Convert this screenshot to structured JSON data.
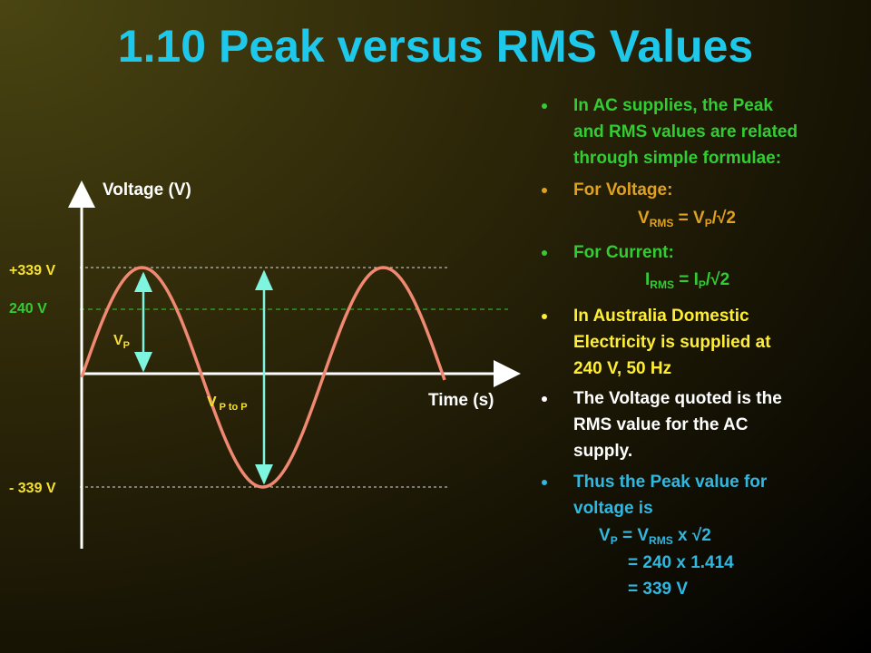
{
  "title": "1.10 Peak versus RMS Values",
  "diagram": {
    "y_axis_label": "Voltage (V)",
    "x_axis_label": "Time (s)",
    "levels": [
      "+339 V",
      "240 V",
      "- 339 V"
    ],
    "peak_label": [
      "V",
      "P"
    ],
    "peak_to_peak_label": [
      "V",
      "P to P"
    ]
  },
  "bullets": [
    {
      "lines": [
        "In AC supplies, the Peak",
        "and RMS values are related",
        "through simple formulae:"
      ]
    },
    {
      "lines": [
        "For Voltage:"
      ],
      "formula": [
        "V",
        "RMS",
        " = V",
        "P",
        "/√2"
      ]
    },
    {
      "lines": [
        "For Current:"
      ],
      "formula": [
        "I",
        "RMS",
        " = I",
        "P",
        "/√2"
      ]
    },
    {
      "lines": [
        "In Australia Domestic",
        "Electricity is supplied at",
        "240 V, 50 Hz"
      ]
    },
    {
      "lines": [
        "The Voltage quoted is the",
        "RMS value for the AC",
        "supply."
      ]
    },
    {
      "lines": [
        "Thus the Peak value for",
        "voltage is"
      ],
      "formula": [
        "V",
        "P",
        " = V",
        "RMS",
        " x √2"
      ],
      "steps": [
        "= 240 x 1.414",
        "= 339 V"
      ]
    }
  ]
}
